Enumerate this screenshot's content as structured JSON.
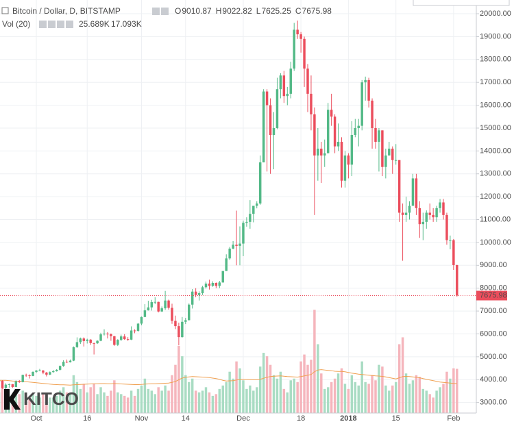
{
  "chart_data": {
    "type": "candlestick",
    "title": "Bitcoin / Dollar, D, BITSTAMP",
    "ohlc_labels": [
      "O",
      "H",
      "L",
      "C"
    ],
    "volume_title": "Vol (20)",
    "volume_label": "25.689K",
    "volume_ma_label": "17.093K",
    "logo": "KITCO",
    "up_color": "#53b987",
    "down_color": "#eb4d5c",
    "volume_up_color": "#a9dcc3",
    "volume_down_color": "#f5b5bc",
    "volume_ma_color": "#f0a050",
    "grid": true,
    "ylim": [
      2540,
      20600
    ],
    "yticks": [
      {
        "value": 3000,
        "label": "3000.00"
      },
      {
        "value": 4000,
        "label": "4000.00"
      },
      {
        "value": 5000,
        "label": "5000.00"
      },
      {
        "value": 6000,
        "label": "6000.00"
      },
      {
        "value": 7000,
        "label": "7000.00"
      },
      {
        "value": 8000,
        "label": "8000.00"
      },
      {
        "value": 9000,
        "label": "9000.00"
      },
      {
        "value": 10000,
        "label": "10000.00"
      },
      {
        "value": 11000,
        "label": "11000.00"
      },
      {
        "value": 12000,
        "label": "12000.00"
      },
      {
        "value": 13000,
        "label": "13000.00"
      },
      {
        "value": 14000,
        "label": "14000.00"
      },
      {
        "value": 15000,
        "label": "15000.00"
      },
      {
        "value": 16000,
        "label": "16000.00"
      },
      {
        "value": 17000,
        "label": "17000.00"
      },
      {
        "value": 18000,
        "label": "18000.00"
      },
      {
        "value": 19000,
        "label": "19000.00"
      },
      {
        "value": 20000,
        "label": "20000.00"
      }
    ],
    "y2lim": [
      0,
      240
    ],
    "categories": [
      null,
      null,
      null,
      null,
      null,
      null,
      null,
      null,
      null,
      null,
      null,
      "Oct",
      null,
      null,
      null,
      null,
      null,
      null,
      null,
      null,
      null,
      null,
      null,
      null,
      null,
      null,
      "16",
      null,
      null,
      null,
      null,
      null,
      null,
      null,
      null,
      null,
      null,
      null,
      null,
      null,
      null,
      null,
      "Nov",
      null,
      null,
      null,
      null,
      null,
      null,
      null,
      null,
      null,
      null,
      null,
      null,
      "14",
      null,
      null,
      null,
      null,
      null,
      null,
      null,
      null,
      null,
      null,
      null,
      null,
      null,
      null,
      null,
      null,
      "Dec",
      null,
      null,
      null,
      null,
      null,
      null,
      null,
      null,
      null,
      null,
      null,
      null,
      null,
      null,
      null,
      null,
      "18",
      null,
      null,
      null,
      null,
      null,
      null,
      null,
      null,
      null,
      null,
      null,
      null,
      null,
      "2018",
      null,
      null,
      null,
      null,
      null,
      null,
      null,
      null,
      null,
      null,
      null,
      null,
      null,
      "15",
      null,
      null,
      null,
      null,
      null,
      null,
      null,
      null,
      null,
      null,
      null,
      null,
      null,
      null,
      null,
      null,
      "Feb",
      null
    ],
    "candles": [
      [
        3910,
        4050,
        3860,
        3950
      ],
      [
        3950,
        3970,
        3600,
        3630
      ],
      [
        3630,
        3840,
        3580,
        3780
      ],
      [
        3780,
        3830,
        3650,
        3800
      ],
      [
        3800,
        3810,
        3640,
        3680
      ],
      [
        3680,
        3970,
        3670,
        3930
      ],
      [
        3930,
        3980,
        3860,
        3890
      ],
      [
        3890,
        4220,
        3880,
        4210
      ],
      [
        4210,
        4260,
        4120,
        4190
      ],
      [
        4190,
        4230,
        4050,
        4160
      ],
      [
        4160,
        4360,
        4150,
        4340
      ],
      [
        4340,
        4420,
        4290,
        4400
      ],
      [
        4400,
        4470,
        4370,
        4400
      ],
      [
        4400,
        4420,
        4240,
        4310
      ],
      [
        4310,
        4340,
        4140,
        4220
      ],
      [
        4220,
        4360,
        4200,
        4330
      ],
      [
        4330,
        4420,
        4300,
        4370
      ],
      [
        4370,
        4460,
        4350,
        4430
      ],
      [
        4430,
        4620,
        4400,
        4600
      ],
      [
        4600,
        4850,
        4560,
        4780
      ],
      [
        4780,
        4880,
        4730,
        4760
      ],
      [
        4760,
        4880,
        4750,
        4830
      ],
      [
        4830,
        5450,
        4810,
        5420
      ],
      [
        5420,
        5850,
        5390,
        5640
      ],
      [
        5640,
        5840,
        5560,
        5800
      ],
      [
        5800,
        5850,
        5450,
        5690
      ],
      [
        5690,
        5790,
        5580,
        5750
      ],
      [
        5750,
        5770,
        5520,
        5600
      ],
      [
        5600,
        5610,
        5100,
        5590
      ],
      [
        5590,
        5720,
        5560,
        5700
      ],
      [
        5700,
        6050,
        5680,
        5980
      ],
      [
        5980,
        6200,
        5930,
        6010
      ],
      [
        6010,
        6080,
        5800,
        5990
      ],
      [
        5990,
        6020,
        5700,
        5900
      ],
      [
        5900,
        5910,
        5480,
        5520
      ],
      [
        5520,
        5770,
        5470,
        5740
      ],
      [
        5740,
        5970,
        5690,
        5890
      ],
      [
        5890,
        5990,
        5740,
        5770
      ],
      [
        5770,
        5860,
        5700,
        5750
      ],
      [
        5750,
        6330,
        5730,
        6150
      ],
      [
        6150,
        6200,
        6030,
        6130
      ],
      [
        6130,
        6470,
        6100,
        6450
      ],
      [
        6450,
        6760,
        6380,
        6740
      ],
      [
        6740,
        7300,
        6730,
        7030
      ],
      [
        7030,
        7450,
        7020,
        7160
      ],
      [
        7160,
        7490,
        7020,
        7390
      ],
      [
        7390,
        7600,
        7300,
        7400
      ],
      [
        7400,
        7410,
        6940,
        6980
      ],
      [
        6980,
        7200,
        6960,
        7120
      ],
      [
        7120,
        7880,
        7050,
        7460
      ],
      [
        7460,
        7500,
        7060,
        7140
      ],
      [
        7140,
        7320,
        6440,
        6570
      ],
      [
        6570,
        6800,
        6210,
        6340
      ],
      [
        6340,
        6490,
        5500,
        5860
      ],
      [
        5860,
        6740,
        5840,
        6530
      ],
      [
        6530,
        6700,
        6430,
        6600
      ],
      [
        6600,
        7330,
        6590,
        7280
      ],
      [
        7280,
        7960,
        7110,
        7850
      ],
      [
        7850,
        8000,
        7600,
        7700
      ],
      [
        7700,
        7860,
        7460,
        7780
      ],
      [
        7780,
        8100,
        7700,
        8040
      ],
      [
        8040,
        8290,
        7980,
        8200
      ],
      [
        8200,
        8370,
        7940,
        8100
      ],
      [
        8100,
        8300,
        8060,
        8230
      ],
      [
        8230,
        8250,
        8000,
        8100
      ],
      [
        8100,
        8320,
        8000,
        8250
      ],
      [
        8250,
        8750,
        8240,
        8750
      ],
      [
        8750,
        9480,
        8750,
        9300
      ],
      [
        9300,
        9800,
        9240,
        9730
      ],
      [
        9730,
        10060,
        9700,
        9900
      ],
      [
        9900,
        11390,
        9000,
        9850
      ],
      [
        9850,
        10700,
        9000,
        9950
      ],
      [
        9950,
        10950,
        9400,
        10860
      ],
      [
        10860,
        11100,
        10690,
        10900
      ],
      [
        10900,
        11850,
        10600,
        11250
      ],
      [
        11250,
        11600,
        10880,
        11600
      ],
      [
        11600,
        11800,
        11490,
        11700
      ],
      [
        11700,
        13800,
        11650,
        13500
      ],
      [
        13500,
        16700,
        13500,
        16600
      ],
      [
        16600,
        16700,
        13100,
        16000
      ],
      [
        16000,
        16300,
        13000,
        14700
      ],
      [
        14700,
        15700,
        13200,
        15000
      ],
      [
        15000,
        17200,
        14950,
        16700
      ],
      [
        16700,
        17400,
        16300,
        17300
      ],
      [
        17300,
        17500,
        16100,
        16400
      ],
      [
        16400,
        16800,
        16000,
        16500
      ],
      [
        16500,
        17900,
        16300,
        17600
      ],
      [
        17600,
        19600,
        17500,
        19300
      ],
      [
        19300,
        19700,
        18900,
        19100
      ],
      [
        19100,
        19200,
        18300,
        18900
      ],
      [
        18900,
        19000,
        16800,
        17600
      ],
      [
        17600,
        17800,
        15700,
        16500
      ],
      [
        16500,
        17300,
        14900,
        15600
      ],
      [
        15600,
        15900,
        11200,
        13800
      ],
      [
        13800,
        15000,
        12700,
        14100
      ],
      [
        14100,
        14400,
        12600,
        13800
      ],
      [
        13800,
        14500,
        13300,
        13900
      ],
      [
        13900,
        16100,
        13900,
        15800
      ],
      [
        15800,
        16500,
        15100,
        15500
      ],
      [
        15500,
        15600,
        13900,
        14200
      ],
      [
        14200,
        15200,
        14000,
        14400
      ],
      [
        14400,
        14600,
        12400,
        12700
      ],
      [
        12700,
        14000,
        12400,
        13800
      ],
      [
        13800,
        13900,
        12800,
        13400
      ],
      [
        13400,
        15300,
        12900,
        14700
      ],
      [
        14700,
        15400,
        14600,
        15000
      ],
      [
        15000,
        15400,
        14200,
        15100
      ],
      [
        15100,
        17100,
        14900,
        17000
      ],
      [
        17000,
        17250,
        16200,
        17100
      ],
      [
        17100,
        17200,
        15900,
        16200
      ],
      [
        16200,
        16300,
        14100,
        15000
      ],
      [
        15000,
        15400,
        14100,
        14400
      ],
      [
        14400,
        15000,
        13100,
        14900
      ],
      [
        14900,
        14900,
        12900,
        13300
      ],
      [
        13300,
        14100,
        12800,
        13800
      ],
      [
        13800,
        14400,
        13800,
        14100
      ],
      [
        14100,
        14200,
        13000,
        13600
      ],
      [
        13600,
        14300,
        13400,
        13600
      ],
      [
        13600,
        13600,
        10900,
        11300
      ],
      [
        11300,
        11700,
        9200,
        11200
      ],
      [
        11200,
        12000,
        10900,
        11300
      ],
      [
        11300,
        11800,
        11000,
        11600
      ],
      [
        11600,
        13000,
        11600,
        12800
      ],
      [
        12800,
        13000,
        11200,
        11500
      ],
      [
        11500,
        11800,
        10200,
        10800
      ],
      [
        10800,
        11300,
        10100,
        10900
      ],
      [
        10900,
        11400,
        10600,
        11300
      ],
      [
        11300,
        11700,
        11000,
        11200
      ],
      [
        11200,
        11500,
        10900,
        11100
      ],
      [
        11100,
        11600,
        10900,
        11500
      ],
      [
        11500,
        11900,
        11300,
        11750
      ],
      [
        11750,
        11900,
        11000,
        11200
      ],
      [
        11200,
        11300,
        9900,
        10100
      ],
      [
        10100,
        10300,
        9700,
        10100
      ],
      [
        10100,
        10150,
        8800,
        9010.87
      ],
      [
        9010.87,
        9022.82,
        7625.25,
        7675.98
      ]
    ],
    "volume": [
      12,
      16,
      11,
      10,
      9,
      12,
      11,
      13,
      10,
      9,
      11,
      10,
      9,
      11,
      10,
      9,
      9,
      10,
      13,
      15,
      12,
      11,
      22,
      18,
      14,
      17,
      12,
      15,
      17,
      11,
      15,
      12,
      10,
      13,
      19,
      12,
      11,
      10,
      9,
      13,
      10,
      14,
      16,
      20,
      14,
      13,
      11,
      15,
      13,
      16,
      13,
      22,
      28,
      39,
      33,
      22,
      18,
      20,
      13,
      12,
      13,
      15,
      12,
      10,
      11,
      14,
      16,
      18,
      24,
      20,
      30,
      26,
      19,
      14,
      16,
      13,
      15,
      27,
      35,
      33,
      28,
      22,
      20,
      24,
      14,
      12,
      19,
      20,
      18,
      30,
      34,
      28,
      31,
      60,
      40,
      23,
      14,
      15,
      18,
      20,
      23,
      26,
      17,
      14,
      22,
      18,
      16,
      30,
      18,
      17,
      22,
      19,
      28,
      27,
      16,
      13,
      16,
      18,
      40,
      44,
      23,
      17,
      19,
      22,
      21,
      14,
      13,
      11,
      9,
      13,
      15,
      17,
      24,
      20,
      26,
      25.689
    ],
    "volume_ma": [
      19,
      19,
      19,
      18.8,
      18.6,
      18.5,
      18.4,
      18.3,
      18.2,
      18,
      17.8,
      17.6,
      17.4,
      17.2,
      17,
      16.8,
      16.6,
      16.5,
      16.4,
      16.4,
      16.3,
      16.2,
      16.4,
      16.5,
      16.6,
      16.7,
      16.8,
      16.9,
      17,
      17,
      17.1,
      17.1,
      17,
      17,
      17.1,
      17,
      16.9,
      16.8,
      16.7,
      16.6,
      16.5,
      16.5,
      16.6,
      16.8,
      16.9,
      17,
      17,
      17.1,
      17.2,
      17.3,
      17.4,
      17.8,
      18.3,
      19.4,
      20.3,
      20.8,
      21,
      21.2,
      21.1,
      21,
      20.9,
      20.8,
      20.6,
      20.3,
      20,
      19.6,
      19,
      18.6,
      18.7,
      18.8,
      19.2,
      19.5,
      19.6,
      19.5,
      19.4,
      19.3,
      19.3,
      19.6,
      20.2,
      20.8,
      21.2,
      21.4,
      21.5,
      21.6,
      21.4,
      21.2,
      21.1,
      21,
      20.9,
      21.2,
      21.6,
      22,
      22.4,
      24,
      25,
      25.2,
      25,
      24.8,
      24.6,
      24.3,
      24.2,
      24.2,
      24,
      23.6,
      23.2,
      22.9,
      22.6,
      22.4,
      22.2,
      22,
      21.8,
      21.6,
      21.5,
      21.3,
      21,
      20.6,
      20.2,
      19.8,
      20.5,
      21.2,
      21.3,
      21.2,
      21,
      20.8,
      20.5,
      20,
      19.6,
      19.2,
      18.8,
      18.4,
      18,
      17.8,
      17.6,
      17.4,
      17.2,
      17.093
    ]
  }
}
